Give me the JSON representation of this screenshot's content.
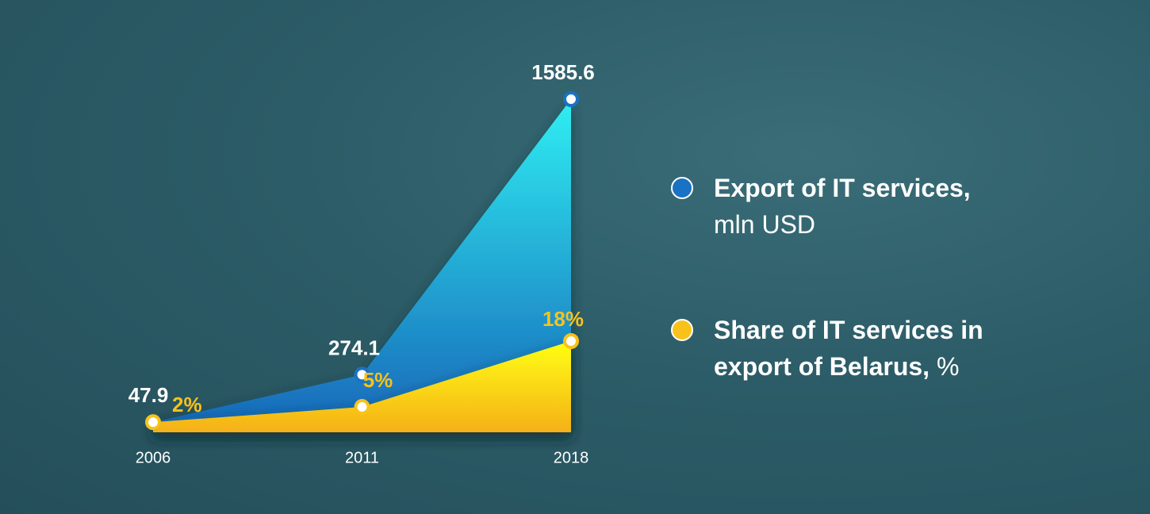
{
  "chart_data": {
    "type": "area",
    "categories": [
      "2006",
      "2011",
      "2018"
    ],
    "series": [
      {
        "name": "Export of IT services,",
        "unit": "mln USD",
        "color": "#1a72c4",
        "values": [
          47.9,
          274.1,
          1585.6
        ]
      },
      {
        "name": "Share of IT services in export of Belarus,",
        "unit": "%",
        "color": "#f8c21a",
        "values": [
          2,
          5,
          18
        ],
        "value_labels": [
          "2%",
          "5%",
          "18%"
        ]
      }
    ]
  }
}
